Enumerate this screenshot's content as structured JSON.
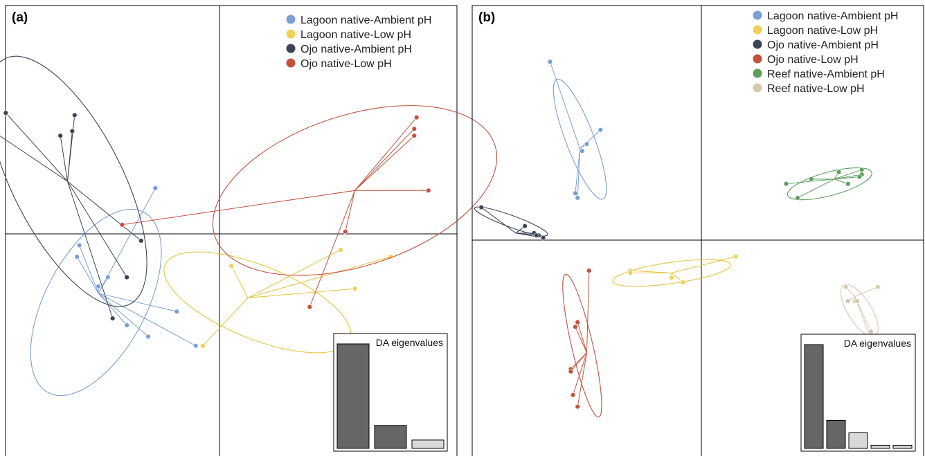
{
  "chart_data": [
    {
      "type": "scatter",
      "panel_label": "(a)",
      "xlim": [
        -1.0,
        1.0
      ],
      "ylim": [
        -1.0,
        1.0
      ],
      "axes_cross": [
        0,
        0
      ],
      "legend": {
        "placement": "top-right",
        "entries": [
          {
            "label": "Lagoon native-Ambient pH",
            "color": "#7a9fd6"
          },
          {
            "label": "Lagoon native-Low pH",
            "color": "#f0cf5a"
          },
          {
            "label": "Ojo native-Ambient pH",
            "color": "#3b4452"
          },
          {
            "label": "Ojo native-Low pH",
            "color": "#c3513d"
          }
        ]
      },
      "groups": [
        {
          "name": "Lagoon native-Ambient pH",
          "color": "#7a9fd6",
          "centroid": [
            -0.51,
            -0.26
          ],
          "points": [
            [
              -0.27,
              0.2
            ],
            [
              -0.47,
              -0.19
            ],
            [
              -0.59,
              -0.05
            ],
            [
              -0.6,
              -0.1
            ],
            [
              -0.51,
              -0.23
            ],
            [
              -0.3,
              -0.45
            ],
            [
              -0.39,
              -0.4
            ],
            [
              -0.1,
              -0.49
            ],
            [
              -0.18,
              -0.34
            ]
          ],
          "ellipse": {
            "cx": -0.52,
            "cy": -0.3,
            "rx": 0.43,
            "ry": 0.22,
            "angle": -62
          }
        },
        {
          "name": "Lagoon native-Low pH",
          "color": "#f0cf5a",
          "centroid": [
            0.12,
            -0.28
          ],
          "points": [
            [
              0.05,
              -0.14
            ],
            [
              0.51,
              -0.07
            ],
            [
              0.72,
              -0.1
            ],
            [
              0.57,
              -0.24
            ],
            [
              -0.07,
              -0.49
            ]
          ],
          "ellipse": {
            "cx": 0.16,
            "cy": -0.3,
            "rx": 0.42,
            "ry": 0.16,
            "angle": 22
          }
        },
        {
          "name": "Ojo native-Ambient pH",
          "color": "#3b4452",
          "centroid": [
            -0.64,
            0.23
          ],
          "points": [
            [
              -0.9,
              0.53
            ],
            [
              -0.94,
              0.44
            ],
            [
              -0.67,
              0.43
            ],
            [
              -0.61,
              0.52
            ],
            [
              -0.62,
              0.45
            ],
            [
              -0.33,
              -0.03
            ],
            [
              -0.39,
              -0.19
            ],
            [
              -0.45,
              -0.37
            ]
          ],
          "ellipse": {
            "cx": -0.64,
            "cy": 0.23,
            "rx": 0.58,
            "ry": 0.24,
            "angle": -117
          }
        },
        {
          "name": "Ojo native-Low pH",
          "color": "#c3513d",
          "centroid": [
            0.57,
            0.19
          ],
          "points": [
            [
              0.83,
              0.51
            ],
            [
              0.82,
              0.46
            ],
            [
              0.82,
              0.43
            ],
            [
              0.88,
              0.19
            ],
            [
              0.53,
              0.01
            ],
            [
              0.38,
              -0.32
            ],
            [
              -0.41,
              0.04
            ]
          ],
          "ellipse": {
            "cx": 0.57,
            "cy": 0.19,
            "rx": 0.62,
            "ry": 0.33,
            "angle": -18
          }
        }
      ],
      "eigenvalues": {
        "title": "DA eigenvalues",
        "values": [
          1.0,
          0.22,
          0.08
        ],
        "shades": [
          "dark",
          "dark",
          "light"
        ]
      }
    },
    {
      "type": "scatter",
      "panel_label": "(b)",
      "xlim": [
        -1.0,
        1.0
      ],
      "ylim": [
        -1.0,
        1.0
      ],
      "axes_cross": [
        0,
        0
      ],
      "legend": {
        "placement": "top-right",
        "entries": [
          {
            "label": "Lagoon native-Ambient pH",
            "color": "#7a9fd6"
          },
          {
            "label": "Lagoon native-Low pH",
            "color": "#f0cf5a"
          },
          {
            "label": "Ojo native-Ambient pH",
            "color": "#3b4452"
          },
          {
            "label": "Ojo native-Low pH",
            "color": "#c3513d"
          },
          {
            "label": "Reef native-Ambient pH",
            "color": "#5c9e5e"
          },
          {
            "label": "Reef native-Low pH",
            "color": "#d8c8b0"
          }
        ]
      },
      "groups": [
        {
          "name": "Lagoon native-Ambient pH",
          "color": "#7a9fd6",
          "centroid": [
            -0.53,
            0.39
          ],
          "points": [
            [
              -0.66,
              0.76
            ],
            [
              -0.44,
              0.47
            ],
            [
              -0.5,
              0.41
            ],
            [
              -0.52,
              0.38
            ],
            [
              -0.55,
              0.2
            ],
            [
              -0.54,
              0.18
            ]
          ],
          "ellipse": {
            "cx": -0.53,
            "cy": 0.43,
            "rx": 0.28,
            "ry": 0.06,
            "angle": 69
          }
        },
        {
          "name": "Lagoon native-Low pH",
          "color": "#f0cf5a",
          "centroid": [
            -0.13,
            -0.14
          ],
          "points": [
            [
              0.15,
              -0.07
            ],
            [
              -0.31,
              -0.13
            ],
            [
              -0.31,
              -0.14
            ],
            [
              -0.13,
              -0.16
            ],
            [
              -0.08,
              -0.18
            ]
          ],
          "ellipse": {
            "cx": -0.13,
            "cy": -0.14,
            "rx": 0.26,
            "ry": 0.045,
            "angle": -8
          }
        },
        {
          "name": "Ojo native-Ambient pH",
          "color": "#3b4452",
          "centroid": [
            -0.81,
            0.03
          ],
          "points": [
            [
              -0.96,
              0.14
            ],
            [
              -0.77,
              0.06
            ],
            [
              -0.73,
              0.03
            ],
            [
              -0.71,
              0.02
            ],
            [
              -0.69,
              0.01
            ],
            [
              -0.72,
              0.02
            ]
          ],
          "ellipse": {
            "cx": -0.83,
            "cy": 0.08,
            "rx": 0.17,
            "ry": 0.025,
            "angle": 20
          }
        },
        {
          "name": "Ojo native-Low pH",
          "color": "#c3513d",
          "centroid": [
            -0.5,
            -0.48
          ],
          "points": [
            [
              -0.49,
              -0.13
            ],
            [
              -0.54,
              -0.35
            ],
            [
              -0.55,
              -0.37
            ],
            [
              -0.57,
              -0.55
            ],
            [
              -0.57,
              -0.56
            ],
            [
              -0.56,
              -0.66
            ],
            [
              -0.54,
              -0.71
            ]
          ],
          "ellipse": {
            "cx": -0.52,
            "cy": -0.45,
            "rx": 0.32,
            "ry": 0.045,
            "angle": 77
          }
        },
        {
          "name": "Reef native-Ambient pH",
          "color": "#5c9e5e",
          "centroid": [
            0.58,
            0.26
          ],
          "points": [
            [
              0.37,
              0.24
            ],
            [
              0.48,
              0.26
            ],
            [
              0.6,
              0.29
            ],
            [
              0.7,
              0.3
            ],
            [
              0.7,
              0.28
            ],
            [
              0.69,
              0.27
            ],
            [
              0.64,
              0.24
            ],
            [
              0.42,
              0.18
            ]
          ],
          "ellipse": {
            "cx": 0.56,
            "cy": 0.24,
            "rx": 0.19,
            "ry": 0.05,
            "angle": -15
          }
        },
        {
          "name": "Reef native-Low pH",
          "color": "#d8c8b0",
          "centroid": [
            0.67,
            -0.24
          ],
          "points": [
            [
              0.63,
              -0.2
            ],
            [
              0.64,
              -0.26
            ],
            [
              0.67,
              -0.26
            ],
            [
              0.77,
              -0.2
            ],
            [
              0.74,
              -0.39
            ],
            [
              0.75,
              -0.45
            ],
            [
              0.68,
              -0.26
            ]
          ],
          "ellipse": {
            "cx": 0.69,
            "cy": -0.3,
            "rx": 0.13,
            "ry": 0.05,
            "angle": 58
          }
        }
      ],
      "eigenvalues": {
        "title": "DA eigenvalues",
        "values": [
          1.0,
          0.27,
          0.15,
          0.03,
          0.03
        ],
        "shades": [
          "dark",
          "dark",
          "light",
          "light",
          "light"
        ]
      }
    }
  ]
}
